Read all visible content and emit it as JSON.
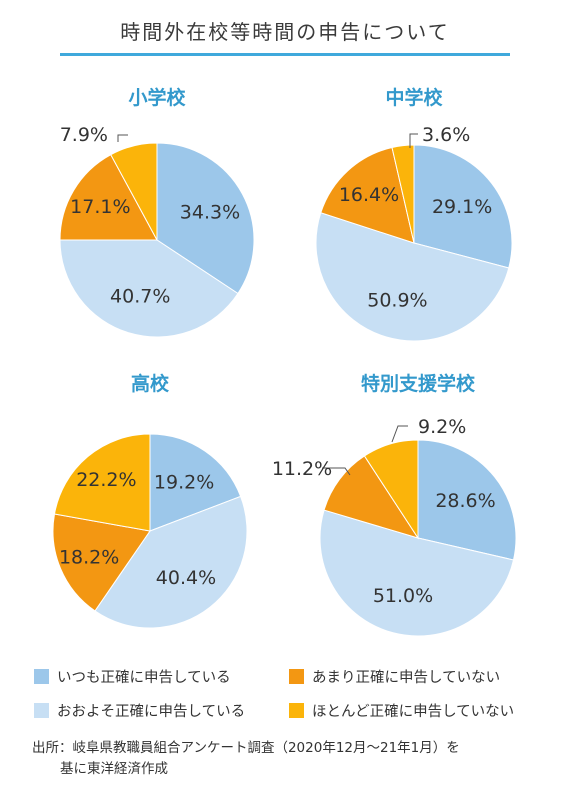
{
  "title": "時間外在校等時間の申告について",
  "colors": {
    "accent": "#3fa9dc",
    "chart_title": "#3399cc",
    "always": "#9cc7ea",
    "mostly": "#c7dff4",
    "rarely": "#f39712",
    "never": "#fbb40a"
  },
  "chart_data": [
    {
      "type": "pie",
      "title": "小学校",
      "series": [
        {
          "category": "いつも正確に申告している",
          "value": 34.3,
          "label": "34.3%"
        },
        {
          "category": "おおよそ正確に申告している",
          "value": 40.7,
          "label": "40.7%"
        },
        {
          "category": "あまり正確に申告していない",
          "value": 17.1,
          "label": "17.1%"
        },
        {
          "category": "ほとんど正確に申告していない",
          "value": 7.9,
          "label": "7.9%"
        }
      ]
    },
    {
      "type": "pie",
      "title": "中学校",
      "series": [
        {
          "category": "いつも正確に申告している",
          "value": 29.1,
          "label": "29.1%"
        },
        {
          "category": "おおよそ正確に申告している",
          "value": 50.9,
          "label": "50.9%"
        },
        {
          "category": "あまり正確に申告していない",
          "value": 16.4,
          "label": "16.4%"
        },
        {
          "category": "ほとんど正確に申告していない",
          "value": 3.6,
          "label": "3.6%"
        }
      ]
    },
    {
      "type": "pie",
      "title": "高校",
      "series": [
        {
          "category": "いつも正確に申告している",
          "value": 19.2,
          "label": "19.2%"
        },
        {
          "category": "おおよそ正確に申告している",
          "value": 40.4,
          "label": "40.4%"
        },
        {
          "category": "あまり正確に申告していない",
          "value": 18.2,
          "label": "18.2%"
        },
        {
          "category": "ほとんど正確に申告していない",
          "value": 22.2,
          "label": "22.2%"
        }
      ]
    },
    {
      "type": "pie",
      "title": "特別支援学校",
      "series": [
        {
          "category": "いつも正確に申告している",
          "value": 28.6,
          "label": "28.6%"
        },
        {
          "category": "おおよそ正確に申告している",
          "value": 51.0,
          "label": "51.0%"
        },
        {
          "category": "あまり正確に申告していない",
          "value": 11.2,
          "label": "11.2%"
        },
        {
          "category": "ほとんど正確に申告していない",
          "value": 9.2,
          "label": "9.2%"
        }
      ]
    }
  ],
  "legend": [
    {
      "label": "いつも正確に申告している"
    },
    {
      "label": "あまり正確に申告していない"
    },
    {
      "label": "おおよそ正確に申告している"
    },
    {
      "label": "ほとんど正確に申告していない"
    }
  ],
  "source": {
    "line1": "出所：岐阜県教職員組合アンケート調査（2020年12月～21年1月）を",
    "line2": "基に東洋経済作成"
  }
}
